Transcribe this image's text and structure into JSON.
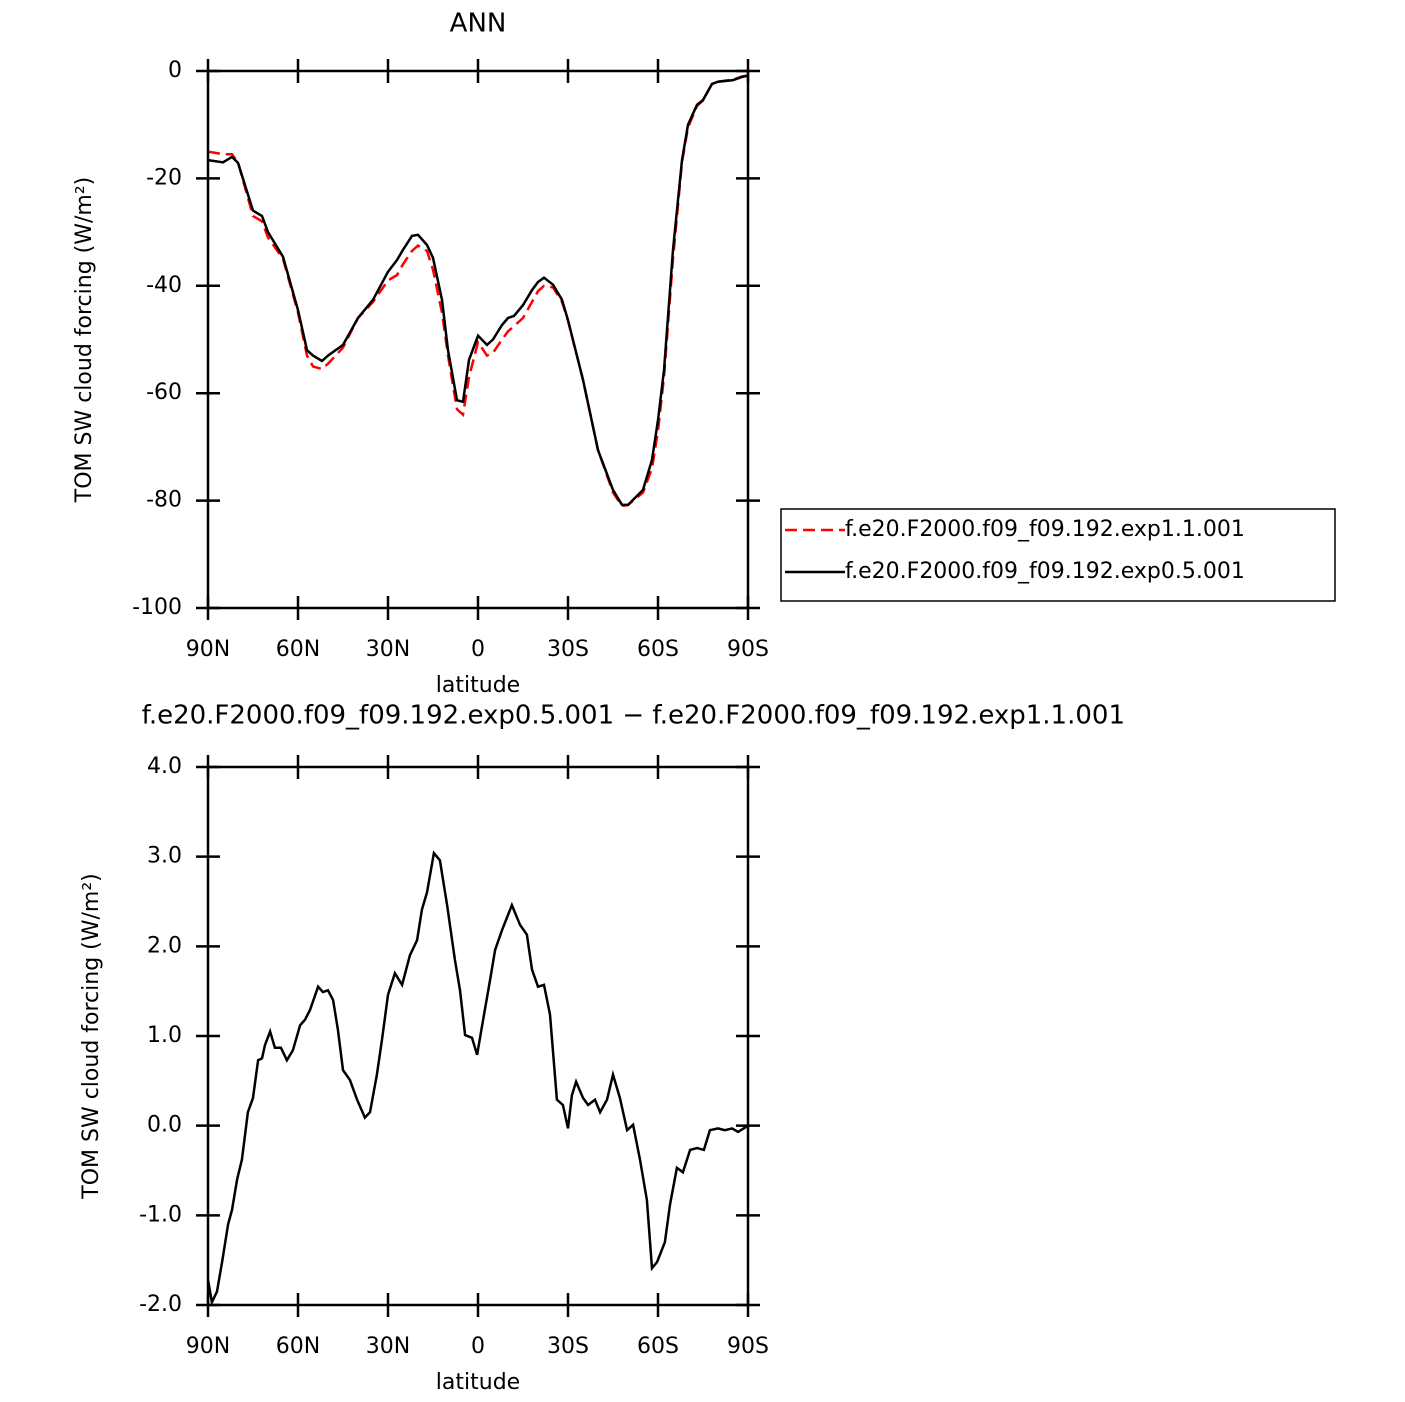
{
  "chart_data": [
    {
      "type": "line",
      "title": "ANN",
      "xlabel": "latitude",
      "ylabel": "TOM SW cloud forcing (W/m²)",
      "xlim": [
        90,
        -90
      ],
      "ylim": [
        -100,
        0
      ],
      "xticks": [
        {
          "value": 90,
          "label": "90N"
        },
        {
          "value": 60,
          "label": "60N"
        },
        {
          "value": 30,
          "label": "30N"
        },
        0,
        {
          "value": -30,
          "label": "30S"
        },
        {
          "value": -60,
          "label": "60S"
        },
        {
          "value": -90,
          "label": "90S"
        }
      ],
      "yticks": [
        0,
        -20,
        -40,
        -60,
        -80,
        -100
      ],
      "legend": "right",
      "x": [
        90,
        85,
        82,
        80,
        75,
        72,
        70,
        65,
        60,
        57,
        55,
        52,
        50,
        45,
        40,
        35,
        30,
        27,
        25,
        22,
        20,
        17,
        15,
        12,
        10,
        7,
        5,
        3,
        0,
        -3,
        -5,
        -8,
        -10,
        -12,
        -15,
        -18,
        -20,
        -22,
        -25,
        -28,
        -30,
        -35,
        -40,
        -45,
        -48,
        -50,
        -55,
        -58,
        -60,
        -62,
        -65,
        -68,
        -70,
        -73,
        -75,
        -78,
        -80,
        -85,
        -88,
        -90
      ],
      "series": [
        {
          "name": "f.e20.F2000.f09_f09.192.exp1.1.001",
          "color": "#ff0000",
          "linestyle": "dashed",
          "values": [
            -15,
            -15.5,
            -15.5,
            -17,
            -27,
            -28,
            -31,
            -35,
            -45,
            -53,
            -55,
            -55.5,
            -54.5,
            -51.5,
            -46,
            -43,
            -39,
            -38,
            -36,
            -33.5,
            -32.5,
            -33.5,
            -37,
            -45,
            -53,
            -63,
            -64,
            -57,
            -50.5,
            -53,
            -52.5,
            -50,
            -48.5,
            -47.5,
            -46,
            -43,
            -41,
            -40,
            -40.3,
            -43,
            -46.5,
            -57.5,
            -70.6,
            -78.5,
            -81,
            -80.8,
            -78.5,
            -74,
            -67,
            -57,
            -35,
            -17,
            -10.5,
            -6.5,
            -5.5,
            -2.4,
            -2,
            -1.6,
            -1,
            -0.8
          ]
        },
        {
          "name": "f.e20.F2000.f09_f09.192.exp0.5.001",
          "color": "#000000",
          "linestyle": "solid",
          "values": [
            -16.6,
            -17,
            -16,
            -17.1,
            -26,
            -27,
            -30,
            -34.6,
            -44.5,
            -52,
            -53,
            -54,
            -53,
            -51,
            -46,
            -42.6,
            -37.4,
            -35.2,
            -33.3,
            -30.7,
            -30.5,
            -32.4,
            -34.8,
            -42.6,
            -52,
            -61.3,
            -61.6,
            -53.8,
            -49.3,
            -51,
            -50,
            -47.3,
            -46,
            -45.6,
            -43.6,
            -40.8,
            -39.3,
            -38.5,
            -39.8,
            -42.6,
            -46.4,
            -57.5,
            -70.6,
            -78,
            -80.8,
            -80.8,
            -78,
            -72.4,
            -65,
            -55.7,
            -33.3,
            -16.6,
            -10,
            -6.3,
            -5.4,
            -2.4,
            -2,
            -1.7,
            -1.1,
            -0.9
          ]
        }
      ]
    },
    {
      "type": "line",
      "title": "f.e20.F2000.f09_f09.192.exp0.5.001 − f.e20.F2000.f09_f09.192.exp1.1.001",
      "xlabel": "latitude",
      "ylabel": "TOM SW cloud forcing (W/m²)",
      "xlim": [
        90,
        -90
      ],
      "ylim": [
        -2,
        4
      ],
      "xticks": [
        {
          "value": 90,
          "label": "90N"
        },
        {
          "value": 60,
          "label": "60N"
        },
        {
          "value": 30,
          "label": "30N"
        },
        0,
        {
          "value": -30,
          "label": "30S"
        },
        {
          "value": -60,
          "label": "60S"
        },
        {
          "value": -90,
          "label": "90S"
        }
      ],
      "yticks": [
        {
          "value": 4,
          "label": "4.0"
        },
        {
          "value": 3,
          "label": "3.0"
        },
        {
          "value": 2,
          "label": "2.0"
        },
        {
          "value": 1,
          "label": "1.0"
        },
        {
          "value": 0,
          "label": "0.0"
        },
        {
          "value": -1,
          "label": "-1.0"
        },
        {
          "value": -2,
          "label": "-2.0"
        }
      ],
      "x": [
        90,
        88.7,
        87,
        85.3,
        83.3,
        82,
        80.3,
        78.7,
        76.7,
        75,
        73.3,
        72,
        71,
        69.3,
        67.7,
        65.7,
        63.7,
        61.7,
        59.3,
        57.7,
        56,
        53.3,
        51.7,
        50,
        48.3,
        46.7,
        45,
        42.7,
        40.3,
        37.7,
        36,
        33.7,
        32,
        30,
        27.7,
        25.3,
        22.7,
        20.3,
        18.7,
        17,
        14.7,
        12.7,
        10.3,
        7.7,
        6,
        4.3,
        2,
        0.3,
        -1.7,
        -4,
        -5.7,
        -8,
        -11.3,
        -14,
        -16.3,
        -18,
        -20,
        -22,
        -24,
        -26.3,
        -28.3,
        -30,
        -31.3,
        -32.7,
        -35,
        -36.7,
        -39,
        -40.7,
        -43,
        -45,
        -47.3,
        -49.7,
        -51.7,
        -54,
        -56.3,
        -58,
        -59.7,
        -62.3,
        -64,
        -66.3,
        -68.3,
        -70.7,
        -73,
        -75.3,
        -77.3,
        -80,
        -82.3,
        -84.7,
        -86.7,
        -90
      ],
      "series": [
        {
          "color": "#000000",
          "linestyle": "solid",
          "values": [
            -1.72,
            -1.97,
            -1.85,
            -1.52,
            -1.1,
            -0.94,
            -0.6,
            -0.38,
            0.15,
            0.31,
            0.73,
            0.75,
            0.9,
            1.05,
            0.87,
            0.87,
            0.73,
            0.84,
            1.12,
            1.18,
            1.29,
            1.55,
            1.49,
            1.51,
            1.4,
            1.07,
            0.62,
            0.51,
            0.29,
            0.09,
            0.15,
            0.57,
            0.96,
            1.46,
            1.7,
            1.57,
            1.9,
            2.07,
            2.41,
            2.6,
            3.04,
            2.96,
            2.46,
            1.85,
            1.51,
            1.01,
            0.98,
            0.79,
            1.18,
            1.62,
            1.96,
            2.18,
            2.46,
            2.24,
            2.13,
            1.74,
            1.55,
            1.57,
            1.24,
            0.29,
            0.23,
            -0.03,
            0.34,
            0.49,
            0.31,
            0.23,
            0.29,
            0.15,
            0.29,
            0.57,
            0.31,
            -0.05,
            0.01,
            -0.38,
            -0.83,
            -1.59,
            -1.52,
            -1.3,
            -0.88,
            -0.47,
            -0.52,
            -0.27,
            -0.25,
            -0.27,
            -0.05,
            -0.03,
            -0.05,
            -0.03,
            -0.07,
            0
          ]
        }
      ]
    }
  ]
}
